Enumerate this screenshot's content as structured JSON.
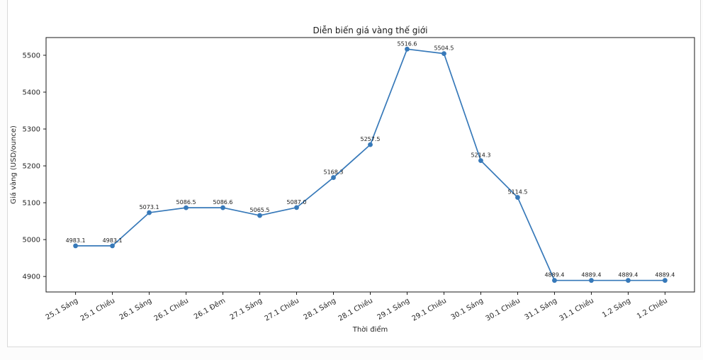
{
  "page": {
    "background": "#fcfcfc",
    "figure_background": "#ffffff",
    "figure_border_color": "#d9d9d9"
  },
  "chart_data": {
    "type": "line",
    "title": "Diễn biến giá vàng thế giới",
    "xlabel": "Thời điểm",
    "ylabel": "Giá vàng (USD/ounce)",
    "categories": [
      "25.1 Sáng",
      "25.1 Chiều",
      "26.1 Sáng",
      "26.1 Chiều",
      "26.1 Đêm",
      "27.1 Sáng",
      "27.1 Chiều",
      "28.1 Sáng",
      "28.1 Chiều",
      "29.1 Sáng",
      "29.1 Chiều",
      "30.1 Sáng",
      "30.1 Chiều",
      "31.1 Sáng",
      "31.1 Chiều",
      "1.2 Sáng",
      "1.2 Chiều"
    ],
    "values": [
      4983.1,
      4983.1,
      5073.1,
      5086.5,
      5086.6,
      5065.5,
      5087.0,
      5168.3,
      5257.5,
      5516.6,
      5504.5,
      5214.3,
      5114.5,
      4889.4,
      4889.4,
      4889.4,
      4889.4
    ],
    "point_labels": [
      "4983.1",
      "4983.1",
      "5073.1",
      "5086.5",
      "5086.6",
      "5065.5",
      "5087.0",
      "5168.3",
      "5257.5",
      "5516.6",
      "5504.5",
      "5214.3",
      "5114.5",
      "4889.4",
      "4889.4",
      "4889.4",
      "4889.4"
    ],
    "yticks": [
      4900,
      5000,
      5100,
      5200,
      5300,
      5400,
      5500
    ],
    "ylim": [
      4858,
      5548
    ],
    "xlim": [
      -0.8,
      16.8
    ],
    "grid": false,
    "legend": "none",
    "marker": "o",
    "x_tick_rotation": 30,
    "line_color": "#3779b9",
    "spine_color": "#1a1a1a",
    "text_color": "#262626"
  }
}
